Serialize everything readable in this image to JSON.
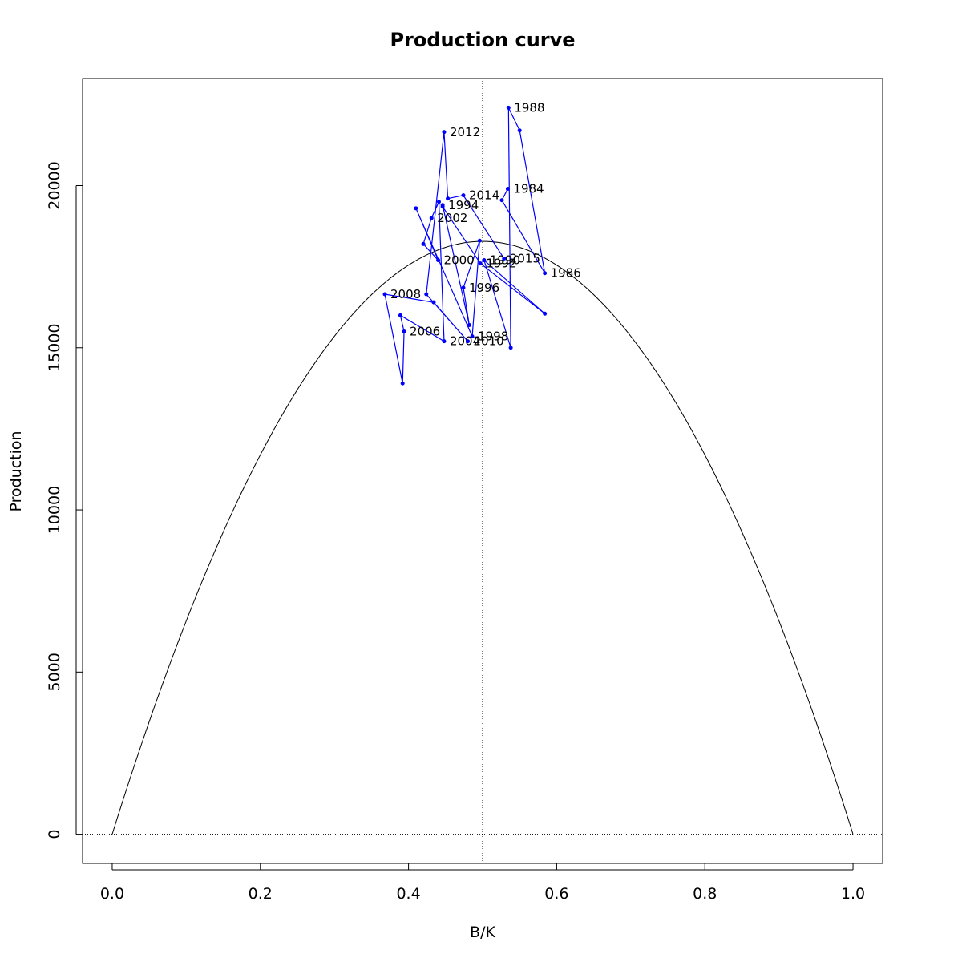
{
  "chart_data": {
    "type": "line",
    "title": "Production curve",
    "xlabel": "B/K",
    "ylabel": "Production",
    "xlim": [
      -0.04,
      1.04
    ],
    "ylim": [
      -900,
      23300
    ],
    "xticks": [
      0.0,
      0.2,
      0.4,
      0.6,
      0.8,
      1.0
    ],
    "xtick_labels": [
      "0.0",
      "0.2",
      "0.4",
      "0.6",
      "0.8",
      "1.0"
    ],
    "yticks": [
      0,
      5000,
      10000,
      15000,
      20000
    ],
    "ytick_labels": [
      "0",
      "5000",
      "10000",
      "15000",
      "20000"
    ],
    "grid": false,
    "colors": {
      "curve": "#000000",
      "series": "#0000ff",
      "reference": "#000000"
    },
    "reference_lines": {
      "vertical_x": 0.5,
      "horizontal_y": 0
    },
    "curve": {
      "name": "",
      "shape": "parabola",
      "x_range": [
        0.0,
        1.0
      ],
      "peak_x": 0.5,
      "peak_y": 18280
    },
    "series": [
      {
        "name": "",
        "color": "#0000ff",
        "points": [
          {
            "x": 0.534,
            "y": 19900,
            "label": "1984"
          },
          {
            "x": 0.526,
            "y": 19550,
            "label": ""
          },
          {
            "x": 0.584,
            "y": 17300,
            "label": "1986"
          },
          {
            "x": 0.55,
            "y": 21700,
            "label": ""
          },
          {
            "x": 0.535,
            "y": 22400,
            "label": "1988"
          },
          {
            "x": 0.538,
            "y": 15000,
            "label": ""
          },
          {
            "x": 0.502,
            "y": 17700,
            "label": "1990"
          },
          {
            "x": 0.584,
            "y": 16050,
            "label": ""
          },
          {
            "x": 0.497,
            "y": 17600,
            "label": "1992"
          },
          {
            "x": 0.446,
            "y": 19350,
            "label": ""
          },
          {
            "x": 0.446,
            "y": 19400,
            "label": "1994"
          },
          {
            "x": 0.482,
            "y": 15700,
            "label": ""
          },
          {
            "x": 0.474,
            "y": 16850,
            "label": "1996"
          },
          {
            "x": 0.496,
            "y": 18300,
            "label": ""
          },
          {
            "x": 0.486,
            "y": 15350,
            "label": "1998"
          },
          {
            "x": 0.41,
            "y": 19300,
            "label": ""
          },
          {
            "x": 0.44,
            "y": 17700,
            "label": "2000"
          },
          {
            "x": 0.42,
            "y": 18200,
            "label": ""
          },
          {
            "x": 0.431,
            "y": 19000,
            "label": "2002"
          },
          {
            "x": 0.441,
            "y": 19500,
            "label": ""
          },
          {
            "x": 0.448,
            "y": 15200,
            "label": "2004"
          },
          {
            "x": 0.389,
            "y": 16000,
            "label": ""
          },
          {
            "x": 0.394,
            "y": 15500,
            "label": "2006"
          },
          {
            "x": 0.392,
            "y": 13900,
            "label": ""
          },
          {
            "x": 0.368,
            "y": 16650,
            "label": "2008"
          },
          {
            "x": 0.434,
            "y": 16400,
            "label": ""
          },
          {
            "x": 0.48,
            "y": 15200,
            "label": "2010"
          },
          {
            "x": 0.424,
            "y": 16650,
            "label": ""
          },
          {
            "x": 0.448,
            "y": 21650,
            "label": "2012"
          },
          {
            "x": 0.453,
            "y": 19600,
            "label": ""
          },
          {
            "x": 0.474,
            "y": 19700,
            "label": "2014"
          },
          {
            "x": 0.529,
            "y": 17750,
            "label": "2015"
          }
        ]
      }
    ]
  }
}
